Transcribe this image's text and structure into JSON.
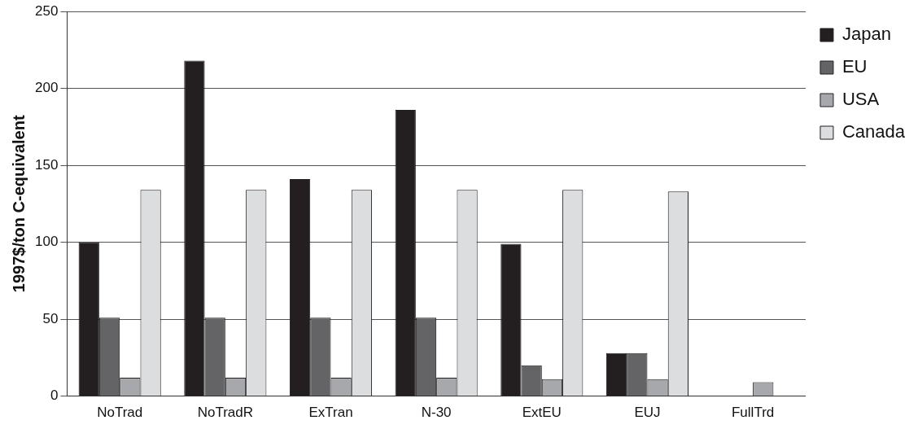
{
  "chart_data": {
    "type": "bar",
    "ylabel": "1997$/ton C-equivalent",
    "categories": [
      "NoTrad",
      "NoTradR",
      "ExTran",
      "N-30",
      "ExtEU",
      "EUJ",
      "FullTrd"
    ],
    "series": [
      {
        "name": "Japan",
        "color": "#231f20",
        "values": [
          100,
          218,
          141,
          186,
          99,
          28,
          0
        ]
      },
      {
        "name": "EU",
        "color": "#646466",
        "values": [
          51,
          51,
          51,
          51,
          20,
          28,
          0
        ]
      },
      {
        "name": "USA",
        "color": "#a7a8ab",
        "values": [
          12,
          12,
          12,
          12,
          11,
          11,
          9
        ]
      },
      {
        "name": "Canada",
        "color": "#dcdddf",
        "values": [
          134,
          134,
          134,
          134,
          134,
          133,
          0
        ]
      }
    ],
    "ylim": [
      0,
      250
    ],
    "yticks": [
      0,
      50,
      100,
      150,
      200,
      250
    ],
    "grid": "y",
    "legend": "top right"
  }
}
